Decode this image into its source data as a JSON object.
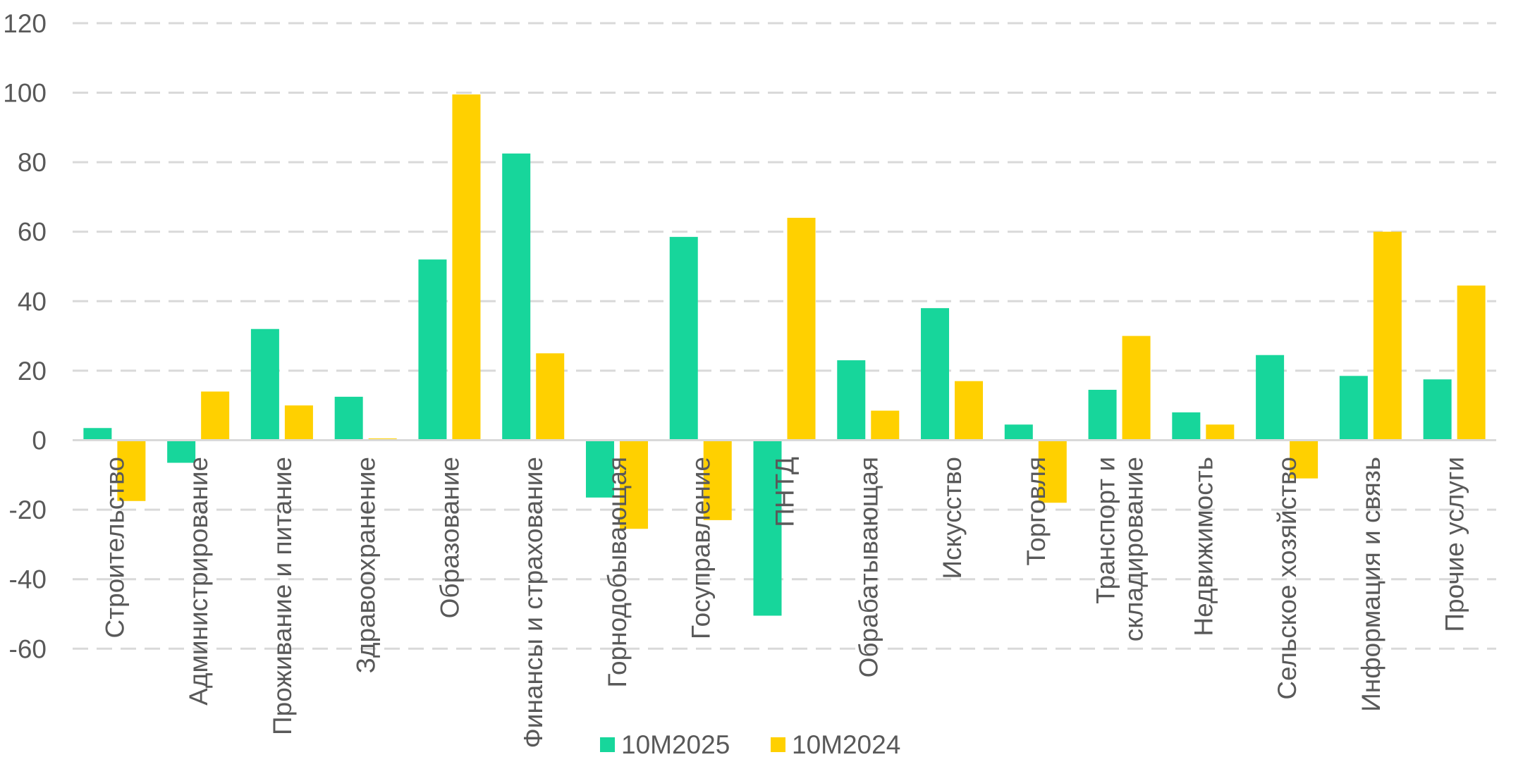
{
  "chart_data": {
    "type": "bar",
    "categories": [
      [
        "Строительство"
      ],
      [
        "Администрирование"
      ],
      [
        "Проживание и питание"
      ],
      [
        "Здравоохранение"
      ],
      [
        "Образование"
      ],
      [
        "Финансы и страхование"
      ],
      [
        "Горнодобывающая"
      ],
      [
        "Госуправление"
      ],
      [
        "ПНТД"
      ],
      [
        "Обрабатывающая"
      ],
      [
        "Искусство"
      ],
      [
        "Торговля"
      ],
      [
        "Транспорт и",
        "складирование"
      ],
      [
        "Недвижимость"
      ],
      [
        "Сельское хозяйство"
      ],
      [
        "Информация и связь"
      ],
      [
        "Прочие услуги"
      ]
    ],
    "series": [
      {
        "name": "10M2025",
        "color": "#17d69b",
        "values": [
          3.5,
          -6.5,
          32,
          12.5,
          52,
          82.5,
          -16.5,
          58.5,
          -50.5,
          23,
          38,
          4.5,
          14.5,
          8,
          24.5,
          18.5,
          17.5
        ]
      },
      {
        "name": "10M2024",
        "color": "#ffd000",
        "values": [
          -17.5,
          14,
          10,
          0.5,
          99.5,
          25,
          -25.5,
          -23,
          64,
          8.5,
          17,
          -18,
          30,
          4.5,
          -11,
          60,
          44.5
        ]
      }
    ],
    "y_ticks": [
      "120",
      "100",
      "80",
      "60",
      "40",
      "20",
      "0",
      "-20",
      "-40",
      "-60"
    ],
    "ylim": [
      -60,
      120
    ],
    "grid": true,
    "legend_position": "bottom"
  }
}
